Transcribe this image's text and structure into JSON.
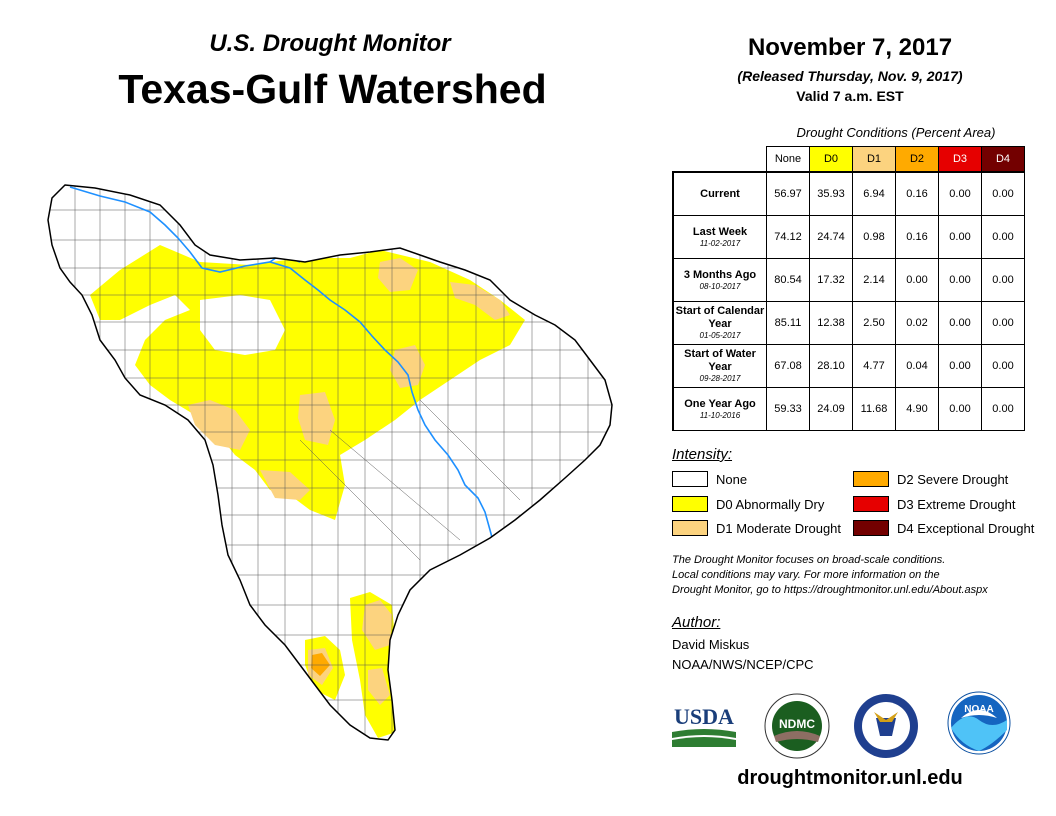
{
  "header": {
    "subtitle": "U.S. Drought Monitor",
    "title": "Texas-Gulf Watershed",
    "date": "November 7, 2017",
    "released": "(Released Thursday, Nov. 9, 2017)",
    "valid": "Valid 7 a.m. EST"
  },
  "table": {
    "caption": "Drought Conditions (Percent Area)",
    "columns": [
      {
        "label": "None",
        "color": "#ffffff",
        "text_color": "#000000"
      },
      {
        "label": "D0",
        "color": "#ffff00",
        "text_color": "#000000"
      },
      {
        "label": "D1",
        "color": "#fcd37f",
        "text_color": "#000000"
      },
      {
        "label": "D2",
        "color": "#ffaa00",
        "text_color": "#000000"
      },
      {
        "label": "D3",
        "color": "#e60000",
        "text_color": "#ffffff"
      },
      {
        "label": "D4",
        "color": "#730000",
        "text_color": "#ffffff"
      }
    ],
    "rows": [
      {
        "label": "Current",
        "date": "",
        "values": [
          "56.97",
          "35.93",
          "6.94",
          "0.16",
          "0.00",
          "0.00"
        ]
      },
      {
        "label": "Last Week",
        "date": "11-02-2017",
        "values": [
          "74.12",
          "24.74",
          "0.98",
          "0.16",
          "0.00",
          "0.00"
        ]
      },
      {
        "label": "3 Months Ago",
        "date": "08-10-2017",
        "values": [
          "80.54",
          "17.32",
          "2.14",
          "0.00",
          "0.00",
          "0.00"
        ]
      },
      {
        "label": "Start of Calendar Year",
        "date": "01-05-2017",
        "values": [
          "85.11",
          "12.38",
          "2.50",
          "0.02",
          "0.00",
          "0.00"
        ]
      },
      {
        "label": "Start of Water Year",
        "date": "09-28-2017",
        "values": [
          "67.08",
          "28.10",
          "4.77",
          "0.04",
          "0.00",
          "0.00"
        ]
      },
      {
        "label": "One Year Ago",
        "date": "11-10-2016",
        "values": [
          "59.33",
          "24.09",
          "11.68",
          "4.90",
          "0.00",
          "0.00"
        ]
      }
    ]
  },
  "legend": {
    "heading": "Intensity:",
    "items": [
      {
        "label": "None",
        "color": "#ffffff"
      },
      {
        "label": "D0 Abnormally Dry",
        "color": "#ffff00"
      },
      {
        "label": "D1 Moderate Drought",
        "color": "#fcd37f"
      },
      {
        "label": "D2 Severe Drought",
        "color": "#ffaa00"
      },
      {
        "label": "D3 Extreme Drought",
        "color": "#e60000"
      },
      {
        "label": "D4 Exceptional Drought",
        "color": "#730000"
      }
    ]
  },
  "note": {
    "line1": "The Drought Monitor focuses on broad-scale conditions.",
    "line2": "Local conditions may vary. For more information on the",
    "line3": "Drought Monitor, go to https://droughtmonitor.unl.edu/About.aspx"
  },
  "author": {
    "heading": "Author:",
    "name": "David Miskus",
    "org": "NOAA/NWS/NCEP/CPC"
  },
  "logos": {
    "usda": "USDA",
    "ndmc": "NDMC",
    "noaa": "NOAA"
  },
  "url": "droughtmonitor.unl.edu",
  "colors": {
    "river": "#1e90ff",
    "county_line": "#555555",
    "outline": "#000000"
  }
}
